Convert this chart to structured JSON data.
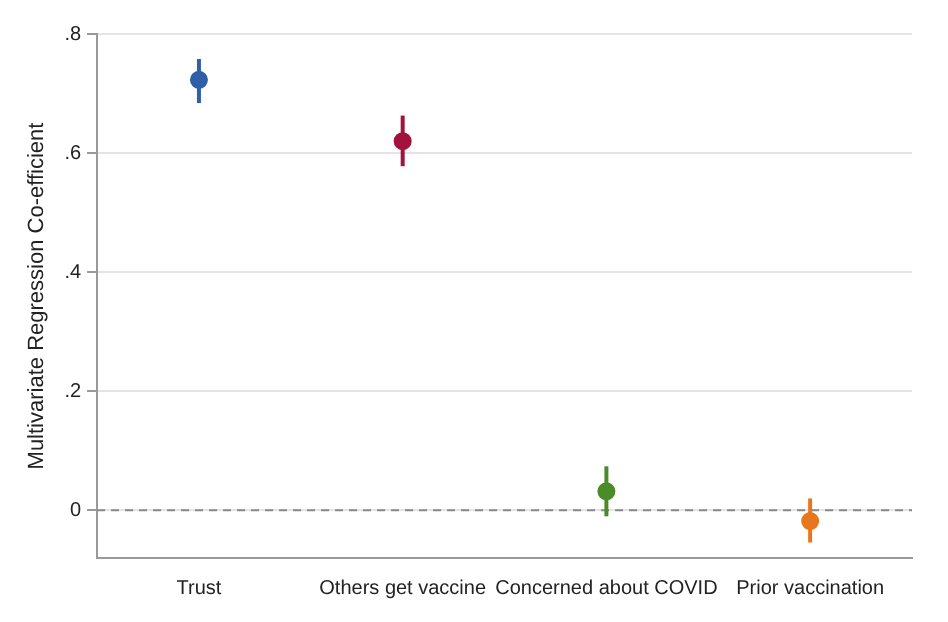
{
  "chart_data": {
    "type": "scatter",
    "ylabel": "Multivariate Regression Co-efficient",
    "categories": [
      "Trust",
      "Others get vaccine",
      "Concerned about COVID",
      "Prior vaccination"
    ],
    "values": [
      0.723,
      0.62,
      0.032,
      -0.018
    ],
    "errors": [
      [
        0.684,
        0.758
      ],
      [
        0.578,
        0.663
      ],
      [
        -0.01,
        0.074
      ],
      [
        -0.054,
        0.02
      ]
    ],
    "colors": [
      "#2e5fa8",
      "#a3123e",
      "#4a8c2a",
      "#e8761e"
    ],
    "ylim": [
      -0.08,
      0.8
    ],
    "yticks": [
      {
        "value": 0,
        "label": "0"
      },
      {
        "value": 0.2,
        "label": ".2"
      },
      {
        "value": 0.4,
        "label": ".4"
      },
      {
        "value": 0.6,
        "label": ".6"
      },
      {
        "value": 0.8,
        "label": ".8"
      }
    ],
    "ref_lines": [
      {
        "axis": "y",
        "value": 0,
        "color": "#888888",
        "line_style": "dashed"
      }
    ],
    "grid": "y",
    "marker": "circle"
  }
}
